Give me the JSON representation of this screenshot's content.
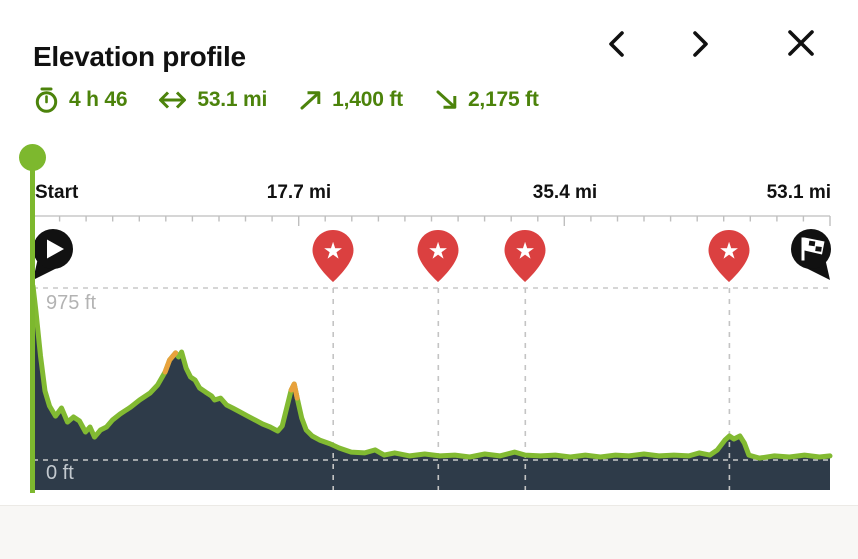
{
  "header": {
    "title": "Elevation profile"
  },
  "stats": [
    {
      "icon": "stopwatch-icon",
      "label": "4 h 46"
    },
    {
      "icon": "distance-arrows-icon",
      "label": "53.1 mi"
    },
    {
      "icon": "ascent-arrow-icon",
      "label": "1,400 ft"
    },
    {
      "icon": "descent-arrow-icon",
      "label": "2,175 ft"
    }
  ],
  "chart_data": {
    "type": "area",
    "title": "Elevation profile",
    "x_unit": "mi",
    "y_unit": "ft",
    "xlim": [
      0,
      53.1
    ],
    "ylim": [
      0,
      975
    ],
    "x_tick_labels": [
      "Start",
      "17.7 mi",
      "35.4 mi",
      "53.1 mi"
    ],
    "x_tick_values_mi": [
      0,
      17.7,
      35.4,
      53.1
    ],
    "ylabels": [
      "975 ft",
      "0 ft"
    ],
    "gridlines_y": [
      975,
      0
    ],
    "grid": "dashed",
    "points": [
      [
        0.0,
        986
      ],
      [
        0.2,
        839
      ],
      [
        0.5,
        590
      ],
      [
        0.8,
        391
      ],
      [
        1.1,
        306
      ],
      [
        1.5,
        249
      ],
      [
        1.9,
        295
      ],
      [
        2.3,
        215
      ],
      [
        2.7,
        244
      ],
      [
        3.1,
        221
      ],
      [
        3.5,
        159
      ],
      [
        3.8,
        187
      ],
      [
        4.1,
        130
      ],
      [
        4.5,
        170
      ],
      [
        4.9,
        187
      ],
      [
        5.3,
        227
      ],
      [
        5.8,
        261
      ],
      [
        6.5,
        300
      ],
      [
        7.1,
        340
      ],
      [
        7.8,
        380
      ],
      [
        8.3,
        425
      ],
      [
        8.8,
        499
      ],
      [
        9.1,
        567
      ],
      [
        9.5,
        607
      ],
      [
        9.7,
        584
      ],
      [
        9.9,
        612
      ],
      [
        10.2,
        521
      ],
      [
        10.5,
        470
      ],
      [
        10.8,
        453
      ],
      [
        11.1,
        408
      ],
      [
        11.5,
        385
      ],
      [
        11.9,
        363
      ],
      [
        12.1,
        340
      ],
      [
        12.5,
        351
      ],
      [
        12.9,
        312
      ],
      [
        13.3,
        295
      ],
      [
        13.8,
        272
      ],
      [
        14.3,
        249
      ],
      [
        14.8,
        227
      ],
      [
        15.3,
        204
      ],
      [
        15.8,
        187
      ],
      [
        16.3,
        164
      ],
      [
        16.6,
        193
      ],
      [
        16.9,
        295
      ],
      [
        17.2,
        397
      ],
      [
        17.4,
        431
      ],
      [
        17.6,
        351
      ],
      [
        17.9,
        238
      ],
      [
        18.2,
        170
      ],
      [
        18.6,
        136
      ],
      [
        19.1,
        113
      ],
      [
        19.8,
        91
      ],
      [
        20.4,
        68
      ],
      [
        21.2,
        45
      ],
      [
        22.1,
        40
      ],
      [
        22.8,
        57
      ],
      [
        23.4,
        28
      ],
      [
        24.1,
        40
      ],
      [
        25.1,
        23
      ],
      [
        26.1,
        34
      ],
      [
        27.1,
        23
      ],
      [
        28.1,
        28
      ],
      [
        29.1,
        17
      ],
      [
        30.1,
        34
      ],
      [
        31.1,
        23
      ],
      [
        32.1,
        45
      ],
      [
        32.8,
        28
      ],
      [
        33.8,
        23
      ],
      [
        34.8,
        28
      ],
      [
        35.8,
        17
      ],
      [
        36.8,
        28
      ],
      [
        37.8,
        17
      ],
      [
        38.8,
        28
      ],
      [
        39.7,
        23
      ],
      [
        40.7,
        34
      ],
      [
        41.7,
        23
      ],
      [
        42.7,
        28
      ],
      [
        43.7,
        23
      ],
      [
        44.4,
        40
      ],
      [
        45.1,
        28
      ],
      [
        45.6,
        57
      ],
      [
        46.1,
        113
      ],
      [
        46.4,
        136
      ],
      [
        46.7,
        119
      ],
      [
        47.1,
        136
      ],
      [
        47.4,
        96
      ],
      [
        47.7,
        28
      ],
      [
        48.4,
        11
      ],
      [
        49.4,
        23
      ],
      [
        50.4,
        17
      ],
      [
        51.4,
        28
      ],
      [
        52.4,
        17
      ],
      [
        53.1,
        23
      ]
    ],
    "steep_segments_mi": [
      [
        8.75,
        9.5
      ],
      [
        17.15,
        17.65
      ]
    ],
    "waypoints": {
      "start_mi": 0,
      "star_mi": [
        20.0,
        27.0,
        32.8,
        46.4
      ],
      "finish_mi": 53.1
    },
    "colors": {
      "line": "#82ba32",
      "steep": "#e8a23c",
      "fill": "#2e3b49",
      "position": "#7db82e",
      "grid": "#c9c9c9",
      "pin_red": "#db4040",
      "pin_black": "#111111",
      "stats_green": "#4c830b"
    },
    "legend": "none"
  }
}
